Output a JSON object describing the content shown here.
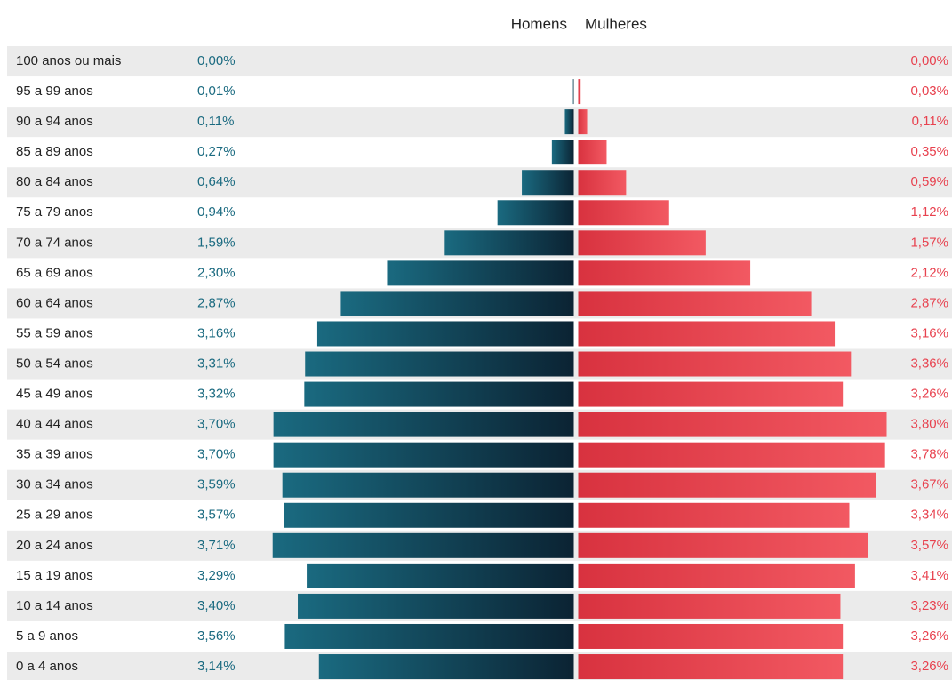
{
  "chart_data": {
    "type": "pyramid",
    "categories": [
      "100 anos ou mais",
      "95 a 99 anos",
      "90 a 94 anos",
      "85 a 89 anos",
      "80 a 84 anos",
      "75 a 79 anos",
      "70 a 74 anos",
      "65 a 69 anos",
      "60 a 64 anos",
      "55 a 59 anos",
      "50 a 54 anos",
      "45 a 49 anos",
      "40 a 44 anos",
      "35 a 39 anos",
      "30 a 34 anos",
      "25 a 29 anos",
      "20 a 24 anos",
      "15 a 19 anos",
      "10 a 14 anos",
      "5 a 9 anos",
      "0 a 4 anos"
    ],
    "series": [
      {
        "name": "Homens",
        "color": "#1a6a80",
        "values": [
          0.0,
          0.01,
          0.11,
          0.27,
          0.64,
          0.94,
          1.59,
          2.3,
          2.87,
          3.16,
          3.31,
          3.32,
          3.7,
          3.7,
          3.59,
          3.57,
          3.71,
          3.29,
          3.4,
          3.56,
          3.14
        ],
        "value_labels": [
          "0,00%",
          "0,01%",
          "0,11%",
          "0,27%",
          "0,64%",
          "0,94%",
          "1,59%",
          "2,30%",
          "2,87%",
          "3,16%",
          "3,31%",
          "3,32%",
          "3,70%",
          "3,70%",
          "3,59%",
          "3,57%",
          "3,71%",
          "3,29%",
          "3,40%",
          "3,56%",
          "3,14%"
        ]
      },
      {
        "name": "Mulheres",
        "color": "#e8424f",
        "values": [
          0.0,
          0.03,
          0.11,
          0.35,
          0.59,
          1.12,
          1.57,
          2.12,
          2.87,
          3.16,
          3.36,
          3.26,
          3.8,
          3.78,
          3.67,
          3.34,
          3.57,
          3.41,
          3.23,
          3.26,
          3.26
        ],
        "value_labels": [
          "0,00%",
          "0,03%",
          "0,11%",
          "0,35%",
          "0,59%",
          "1,12%",
          "1,57%",
          "2,12%",
          "2,87%",
          "3,16%",
          "3,36%",
          "3,26%",
          "3,80%",
          "3,78%",
          "3,67%",
          "3,34%",
          "3,57%",
          "3,41%",
          "3,23%",
          "3,26%",
          "3,26%"
        ]
      }
    ]
  }
}
